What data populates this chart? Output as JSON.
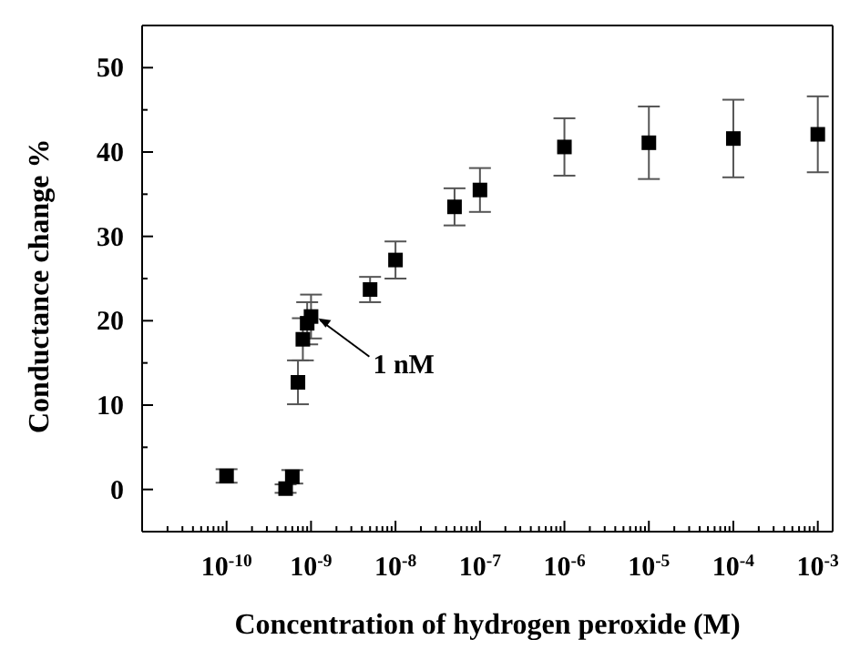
{
  "chart_data": {
    "type": "scatter",
    "xlabel": "Concentration of hydrogen peroxide (M)",
    "ylabel": "Conductance change %",
    "log": "x",
    "marker": "square",
    "x": [
      1e-10,
      5e-10,
      6e-10,
      7e-10,
      8e-10,
      9e-10,
      1e-09,
      5e-09,
      1e-08,
      5e-08,
      1e-07,
      1e-06,
      1e-05,
      0.0001,
      0.001
    ],
    "series": [
      {
        "color": "#000000",
        "values": [
          1.6,
          0.1,
          1.5,
          12.7,
          17.8,
          19.7,
          20.5,
          23.7,
          27.2,
          33.5,
          35.5,
          40.6,
          41.1,
          41.6,
          42.1
        ],
        "errors": [
          0.8,
          0.5,
          0.8,
          2.6,
          2.5,
          2.5,
          2.6,
          1.5,
          2.2,
          2.2,
          2.6,
          3.4,
          4.3,
          4.6,
          4.5
        ]
      }
    ],
    "xlim": [
      1e-11,
      0.0015
    ],
    "ylim": [
      -5,
      55
    ],
    "xticks": [
      {
        "value": 1e-10,
        "label": "10$^{-10}$"
      },
      {
        "value": 1e-09,
        "label": "10$^{-9}$"
      },
      {
        "value": 1e-08,
        "label": "10$^{-8}$"
      },
      {
        "value": 1e-07,
        "label": "10$^{-7}$"
      },
      {
        "value": 1e-06,
        "label": "10$^{-6}$"
      },
      {
        "value": 1e-05,
        "label": "10$^{-5}$"
      },
      {
        "value": 0.0001,
        "label": "10$^{-4}$"
      },
      {
        "value": 0.001,
        "label": "10$^{-3}$"
      }
    ],
    "yticks": [
      0,
      {
        "value": 5,
        "label": null
      },
      10,
      {
        "value": 15,
        "label": null
      },
      20,
      {
        "value": 25,
        "label": null
      },
      30,
      {
        "value": 35,
        "label": null
      },
      40,
      {
        "value": 45,
        "label": null
      },
      50
    ],
    "annotations": [
      {
        "text": "1 nM",
        "x": 1e-09,
        "y": 20.5
      }
    ]
  }
}
